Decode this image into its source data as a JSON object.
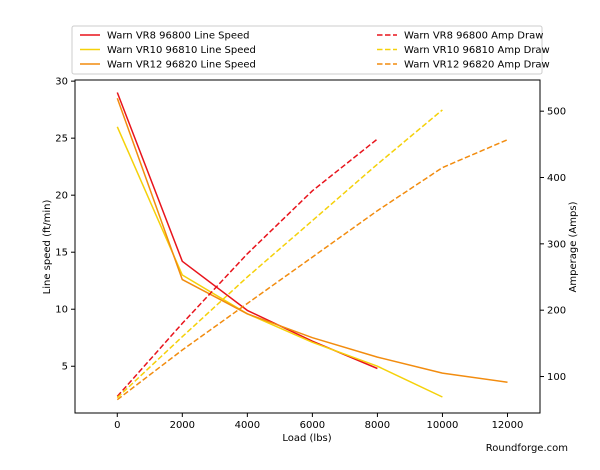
{
  "chart_data": {
    "type": "line",
    "xlabel": "Load (lbs)",
    "ylabel_left": "Line speed (ft/min)",
    "ylabel_right": "Amperage (Amps)",
    "xlim": [
      -1300,
      13000
    ],
    "ylim_left": [
      0.9,
      30.1
    ],
    "ylim_right": [
      45,
      547
    ],
    "xticks": [
      0,
      2000,
      4000,
      6000,
      8000,
      10000,
      12000
    ],
    "yticks_left": [
      5,
      10,
      15,
      20,
      25,
      30
    ],
    "yticks_right": [
      100,
      200,
      300,
      400,
      500
    ],
    "grid": false,
    "legend_position": "top",
    "watermark": "Roundforge.com",
    "series": [
      {
        "name": "Warn VR8 96800 Line Speed",
        "axis": "left",
        "color": "#e8141c",
        "style": "solid",
        "x": [
          0,
          2000,
          4000,
          6000,
          8000
        ],
        "y": [
          29.0,
          14.2,
          9.9,
          7.2,
          4.8
        ]
      },
      {
        "name": "Warn VR10 96810 Line Speed",
        "axis": "left",
        "color": "#f5d10a",
        "style": "solid",
        "x": [
          0,
          2000,
          4000,
          6000,
          8000,
          10000
        ],
        "y": [
          26.0,
          13.0,
          9.6,
          7.1,
          5.0,
          2.3
        ]
      },
      {
        "name": "Warn VR12 96820 Line Speed",
        "axis": "left",
        "color": "#f28c0f",
        "style": "solid",
        "x": [
          0,
          2000,
          4000,
          6000,
          8000,
          10000,
          12000
        ],
        "y": [
          28.5,
          12.6,
          9.6,
          7.5,
          5.8,
          4.4,
          3.6
        ]
      },
      {
        "name": "Warn VR8 96800 Amp Draw",
        "axis": "right",
        "color": "#e8141c",
        "style": "dashed",
        "x": [
          0,
          2000,
          4000,
          6000,
          8000
        ],
        "y": [
          70,
          180,
          285,
          380,
          458
        ]
      },
      {
        "name": "Warn VR10 96810 Amp Draw",
        "axis": "right",
        "color": "#f5d10a",
        "style": "dashed",
        "x": [
          0,
          2000,
          4000,
          6000,
          8000,
          10000
        ],
        "y": [
          68,
          160,
          250,
          335,
          420,
          502
        ]
      },
      {
        "name": "Warn VR12 96820 Amp Draw",
        "axis": "right",
        "color": "#f28c0f",
        "style": "dashed",
        "x": [
          0,
          2000,
          4000,
          6000,
          8000,
          10000,
          12000
        ],
        "y": [
          65,
          140,
          210,
          280,
          350,
          415,
          457
        ]
      }
    ]
  }
}
